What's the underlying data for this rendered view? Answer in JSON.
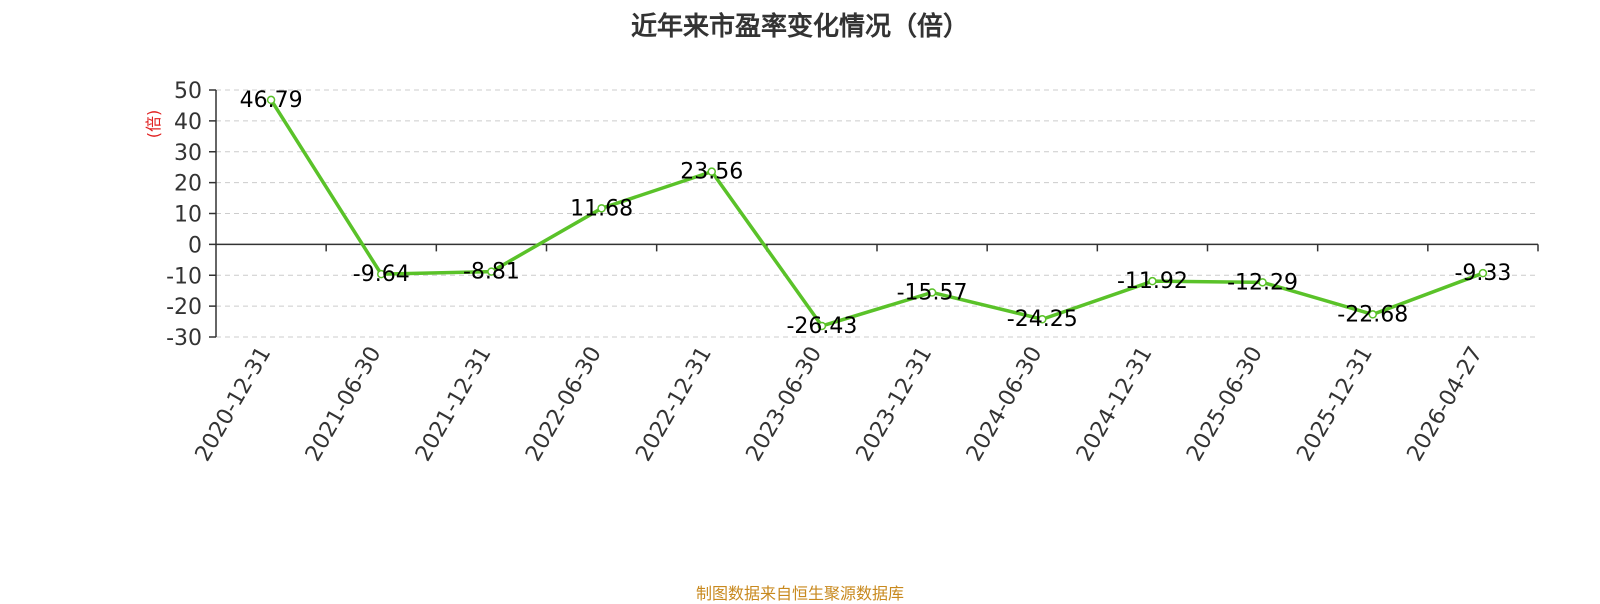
{
  "chart_data": {
    "type": "line",
    "title": "近年来市盈率变化情况（倍）",
    "ylabel": "(倍)",
    "xlabel": "",
    "categories": [
      "2020-12-31",
      "2021-06-30",
      "2021-12-31",
      "2022-06-30",
      "2022-12-31",
      "2023-06-30",
      "2023-12-31",
      "2024-06-30",
      "2024-12-31",
      "2025-06-30",
      "2025-12-31",
      "2026-04-27"
    ],
    "values": [
      46.79,
      -9.64,
      -8.81,
      11.68,
      23.56,
      -26.43,
      -15.57,
      -24.25,
      -11.92,
      -12.29,
      -22.68,
      -9.33
    ],
    "value_labels": [
      "46.79",
      "-9.64",
      "-8.81",
      "11.68",
      "23.56",
      "-26.43",
      "-15.57",
      "-24.25",
      "-11.92",
      "-12.29",
      "-22.68",
      "-9.33"
    ],
    "yticks": [
      "50",
      "40",
      "30",
      "20",
      "10",
      "0",
      "-10",
      "-20",
      "-30"
    ],
    "ytick_values": [
      50,
      40,
      30,
      20,
      10,
      0,
      -10,
      -20,
      -30
    ],
    "ylim": [
      -30,
      50
    ],
    "grid": true,
    "line_color": "#5ac229",
    "ylabel_color": "#e02020"
  },
  "source_note": "制图数据来自恒生聚源数据库",
  "colors": {
    "title": "#333333",
    "source": "#c8891e",
    "grid": "#cccccc",
    "axis": "#333333"
  }
}
